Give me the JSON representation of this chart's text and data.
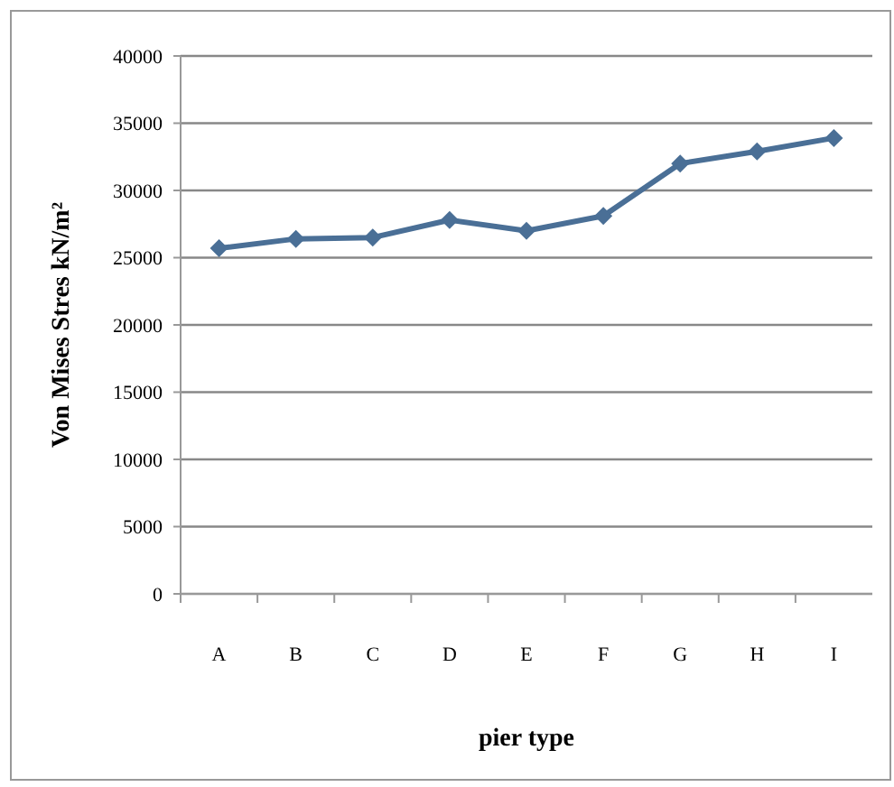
{
  "chart_data": {
    "type": "line",
    "xlabel": "pier type",
    "ylabel": "Von Mises Stres kN/m²",
    "categories": [
      "A",
      "B",
      "C",
      "D",
      "E",
      "F",
      "G",
      "H",
      "I"
    ],
    "series": [
      {
        "color": "#4a6f96",
        "values": [
          25700,
          26400,
          26500,
          27800,
          27000,
          28100,
          32000,
          32900,
          33900
        ]
      }
    ],
    "ylim": [
      0,
      40000
    ],
    "yticks": [
      0,
      5000,
      10000,
      15000,
      20000,
      25000,
      30000,
      35000,
      40000
    ],
    "grid": "y",
    "marker": "diamond",
    "line_style": "solid"
  }
}
